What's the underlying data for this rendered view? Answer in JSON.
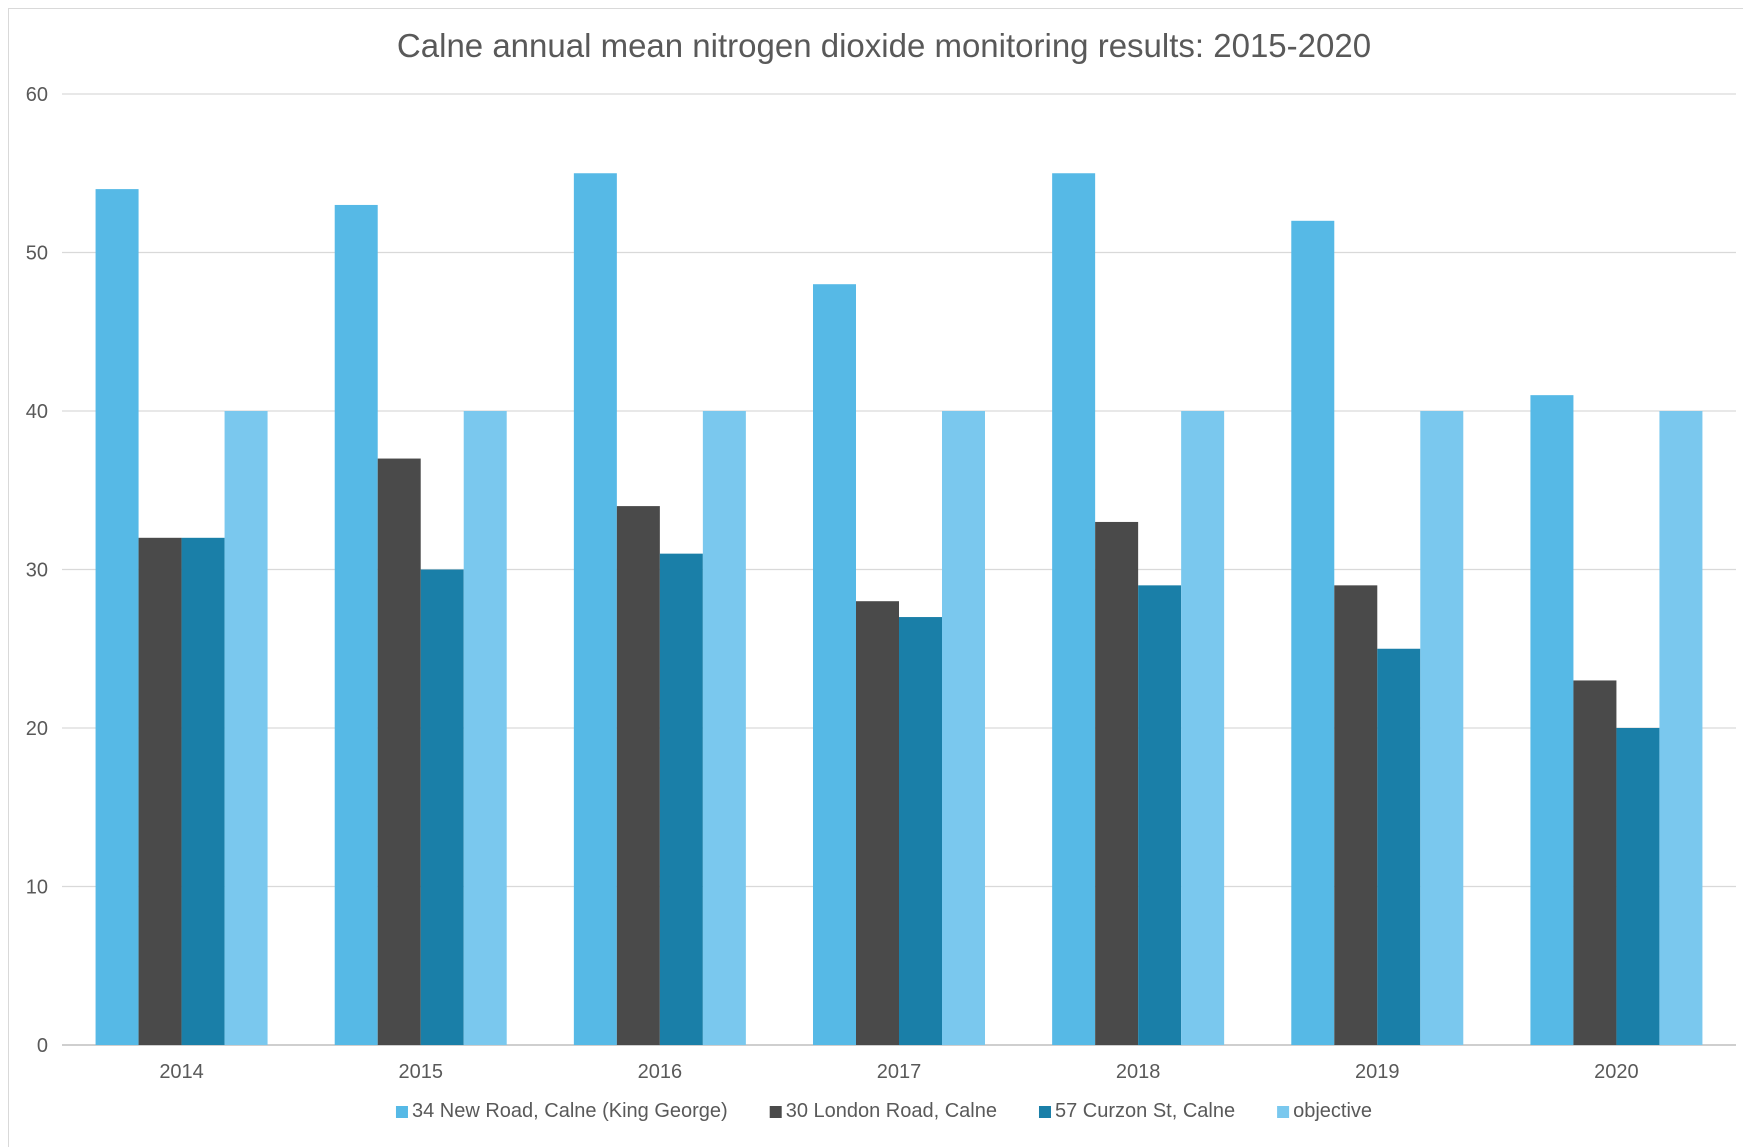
{
  "chart_data": {
    "type": "bar",
    "title": "Calne annual mean nitrogen dioxide monitoring results: 2015-2020",
    "xlabel": "",
    "ylabel": "",
    "ylim": [
      0,
      60
    ],
    "yticks": [
      "0",
      "10",
      "20",
      "30",
      "40",
      "50",
      "60"
    ],
    "categories": [
      "2014",
      "2015",
      "2016",
      "2017",
      "2018",
      "2019",
      "2020"
    ],
    "series": [
      {
        "name": "34 New Road, Calne (King George)",
        "color": "#56b9e6",
        "values": [
          54,
          53,
          55,
          48,
          55,
          52,
          41
        ]
      },
      {
        "name": "30 London Road, Calne",
        "color": "#4a4a4a",
        "values": [
          32,
          37,
          34,
          28,
          33,
          29,
          23
        ]
      },
      {
        "name": "57 Curzon St, Calne",
        "color": "#1a7fa8",
        "values": [
          32,
          30,
          31,
          27,
          29,
          25,
          20
        ]
      },
      {
        "name": "objective",
        "color": "#7ac8ee",
        "values": [
          40,
          40,
          40,
          40,
          40,
          40,
          40
        ]
      }
    ],
    "grid": true,
    "legend_position": "bottom"
  }
}
